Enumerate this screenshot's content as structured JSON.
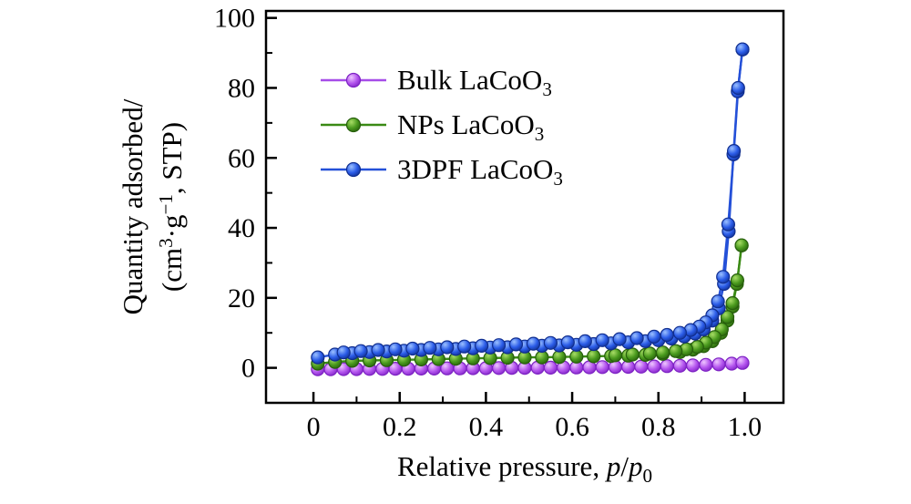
{
  "figure": {
    "background": "#ffffff",
    "frame_color": "#000000"
  },
  "chart_data": {
    "type": "line",
    "subtype": "adsorption-isotherm-scatter-line",
    "title": "",
    "xlabel_plain": "Relative pressure, p/p0",
    "ylabel_plain": "Quantity adsorbed/(cm3·g-1, STP)",
    "xlabel_parts": [
      {
        "t": "Relative pressure, ",
        "style": "normal"
      },
      {
        "t": "p",
        "style": "italic"
      },
      {
        "t": "/",
        "style": "normal"
      },
      {
        "t": "p",
        "style": "italic"
      },
      {
        "t": "0",
        "style": "sub"
      }
    ],
    "ylabel_line1": "Quantity adsorbed/",
    "ylabel_line2_parts": [
      {
        "t": "(cm",
        "style": "normal"
      },
      {
        "t": "3",
        "style": "sup"
      },
      {
        "t": "·g",
        "style": "normal"
      },
      {
        "t": "−1",
        "style": "sup"
      },
      {
        "t": ", STP)",
        "style": "normal"
      }
    ],
    "xlim": [
      -0.11,
      1.09
    ],
    "ylim": [
      -10,
      102
    ],
    "x_ticks": [
      0,
      0.2,
      0.4,
      0.6,
      0.8,
      1.0
    ],
    "x_tick_labels": [
      "0",
      "0.2",
      "0.4",
      "0.6",
      "0.8",
      "1.0"
    ],
    "x_minor_ticks": [
      0.1,
      0.3,
      0.5,
      0.7,
      0.9
    ],
    "y_ticks": [
      0,
      20,
      40,
      60,
      80,
      100
    ],
    "y_tick_labels": [
      "0",
      "20",
      "40",
      "60",
      "80",
      "100"
    ],
    "y_minor_ticks": [
      10,
      30,
      50,
      70,
      90
    ],
    "grid": false,
    "legend_position": "upper-left-inside",
    "series": [
      {
        "id": "bulk",
        "label_main": "Bulk LaCoO",
        "label_sub": "3",
        "line_color": "#a64ce8",
        "marker_light": "#eec6ff",
        "marker_main": "#b455ee",
        "marker_dark": "#7d22c3",
        "branches": [
          [
            [
              0.01,
              -0.4
            ],
            [
              0.04,
              -0.4
            ],
            [
              0.07,
              -0.35
            ],
            [
              0.1,
              -0.35
            ],
            [
              0.13,
              -0.3
            ],
            [
              0.16,
              -0.3
            ],
            [
              0.19,
              -0.25
            ],
            [
              0.22,
              -0.25
            ],
            [
              0.25,
              -0.2
            ],
            [
              0.28,
              -0.2
            ],
            [
              0.31,
              -0.15
            ],
            [
              0.34,
              -0.15
            ],
            [
              0.37,
              -0.1
            ],
            [
              0.4,
              -0.1
            ],
            [
              0.43,
              -0.05
            ],
            [
              0.46,
              0
            ],
            [
              0.49,
              0
            ],
            [
              0.52,
              0.05
            ],
            [
              0.55,
              0.05
            ],
            [
              0.58,
              0.1
            ],
            [
              0.61,
              0.1
            ],
            [
              0.64,
              0.15
            ],
            [
              0.67,
              0.2
            ],
            [
              0.7,
              0.25
            ],
            [
              0.73,
              0.3
            ],
            [
              0.76,
              0.35
            ],
            [
              0.79,
              0.4
            ],
            [
              0.82,
              0.5
            ],
            [
              0.85,
              0.6
            ],
            [
              0.88,
              0.7
            ],
            [
              0.91,
              0.85
            ],
            [
              0.94,
              1.0
            ],
            [
              0.97,
              1.2
            ],
            [
              0.995,
              1.4
            ]
          ]
        ]
      },
      {
        "id": "nps",
        "label_main": "NPs LaCoO",
        "label_sub": "3",
        "line_color": "#3a8a14",
        "marker_light": "#a8dd66",
        "marker_main": "#4a9a1e",
        "marker_dark": "#275f0c",
        "branches": [
          [
            [
              0.01,
              1.2
            ],
            [
              0.05,
              1.7
            ],
            [
              0.09,
              2.0
            ],
            [
              0.13,
              2.1
            ],
            [
              0.17,
              2.2
            ],
            [
              0.21,
              2.3
            ],
            [
              0.25,
              2.4
            ],
            [
              0.29,
              2.5
            ],
            [
              0.33,
              2.6
            ],
            [
              0.37,
              2.7
            ],
            [
              0.41,
              2.8
            ],
            [
              0.45,
              2.9
            ],
            [
              0.49,
              3.0
            ],
            [
              0.53,
              3.0
            ],
            [
              0.57,
              3.1
            ],
            [
              0.61,
              3.2
            ],
            [
              0.65,
              3.3
            ],
            [
              0.69,
              3.4
            ],
            [
              0.73,
              3.5
            ],
            [
              0.77,
              3.7
            ],
            [
              0.81,
              4.0
            ],
            [
              0.85,
              4.5
            ],
            [
              0.88,
              5.2
            ],
            [
              0.905,
              6.2
            ],
            [
              0.925,
              7.6
            ],
            [
              0.945,
              10.0
            ],
            [
              0.96,
              13.5
            ],
            [
              0.972,
              17.5
            ],
            [
              0.982,
              24.0
            ],
            [
              0.993,
              35.0
            ]
          ],
          [
            [
              0.993,
              35.0
            ],
            [
              0.983,
              25.0
            ],
            [
              0.972,
              18.5
            ],
            [
              0.96,
              14.5
            ],
            [
              0.947,
              11.0
            ],
            [
              0.93,
              8.8
            ],
            [
              0.91,
              7.2
            ],
            [
              0.89,
              6.0
            ],
            [
              0.865,
              5.3
            ],
            [
              0.84,
              4.8
            ],
            [
              0.81,
              4.4
            ],
            [
              0.78,
              4.1
            ],
            [
              0.74,
              3.8
            ],
            [
              0.7,
              3.6
            ]
          ]
        ]
      },
      {
        "id": "3dpf",
        "label_main": "3DPF LaCoO",
        "label_sub": "3",
        "line_color": "#2450d8",
        "marker_light": "#9bc0ff",
        "marker_main": "#2b5ce8",
        "marker_dark": "#102e8f",
        "branches": [
          [
            [
              0.01,
              3.0
            ],
            [
              0.05,
              3.8
            ],
            [
              0.09,
              4.2
            ],
            [
              0.13,
              4.5
            ],
            [
              0.17,
              4.7
            ],
            [
              0.21,
              4.9
            ],
            [
              0.25,
              5.1
            ],
            [
              0.29,
              5.3
            ],
            [
              0.33,
              5.4
            ],
            [
              0.37,
              5.6
            ],
            [
              0.41,
              5.8
            ],
            [
              0.45,
              5.9
            ],
            [
              0.49,
              6.1
            ],
            [
              0.53,
              6.3
            ],
            [
              0.57,
              6.4
            ],
            [
              0.61,
              6.6
            ],
            [
              0.65,
              6.8
            ],
            [
              0.69,
              7.0
            ],
            [
              0.73,
              7.3
            ],
            [
              0.77,
              7.6
            ],
            [
              0.8,
              7.9
            ],
            [
              0.83,
              8.4
            ],
            [
              0.86,
              9.0
            ],
            [
              0.885,
              9.8
            ],
            [
              0.905,
              11.0
            ],
            [
              0.925,
              13.5
            ],
            [
              0.94,
              17.0
            ],
            [
              0.952,
              24.0
            ],
            [
              0.963,
              39.0
            ],
            [
              0.974,
              61.0
            ],
            [
              0.984,
              79.0
            ],
            [
              0.995,
              91.0
            ]
          ],
          [
            [
              0.995,
              91.0
            ],
            [
              0.985,
              80.0
            ],
            [
              0.975,
              62.0
            ],
            [
              0.962,
              41.0
            ],
            [
              0.95,
              26.0
            ],
            [
              0.938,
              19.0
            ],
            [
              0.925,
              15.0
            ],
            [
              0.91,
              13.0
            ],
            [
              0.895,
              11.8
            ],
            [
              0.875,
              10.8
            ],
            [
              0.85,
              10.0
            ],
            [
              0.82,
              9.4
            ],
            [
              0.79,
              8.9
            ],
            [
              0.75,
              8.5
            ],
            [
              0.71,
              8.2
            ],
            [
              0.67,
              7.9
            ],
            [
              0.63,
              7.6
            ],
            [
              0.59,
              7.3
            ],
            [
              0.55,
              7.1
            ],
            [
              0.51,
              6.9
            ],
            [
              0.47,
              6.7
            ],
            [
              0.43,
              6.5
            ],
            [
              0.39,
              6.3
            ],
            [
              0.35,
              6.1
            ],
            [
              0.31,
              5.9
            ],
            [
              0.27,
              5.7
            ],
            [
              0.23,
              5.5
            ],
            [
              0.19,
              5.3
            ],
            [
              0.15,
              5.1
            ],
            [
              0.11,
              4.8
            ],
            [
              0.07,
              4.4
            ]
          ]
        ]
      }
    ]
  }
}
